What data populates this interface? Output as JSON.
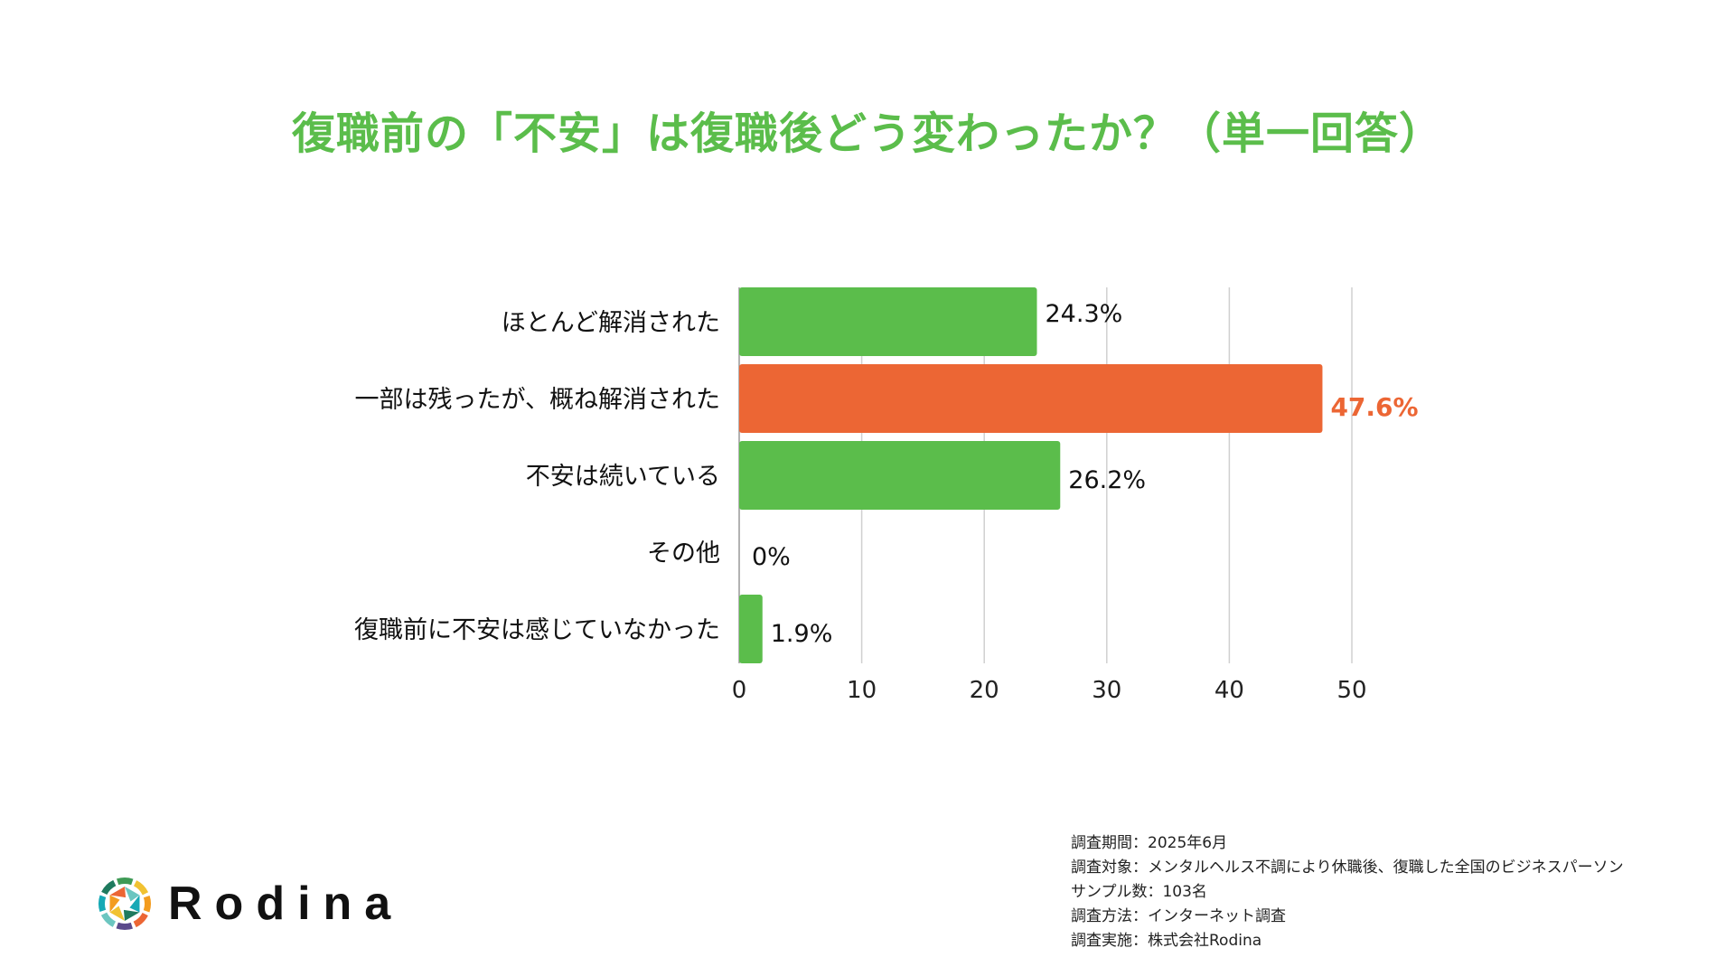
{
  "title": "復職前の「不安」は復職後どう変わったか？（単一回答）",
  "chart_data": {
    "type": "bar",
    "orientation": "horizontal",
    "title": "復職前の「不安」は復職後どう変わったか？（単一回答）",
    "categories": [
      "ほとんど解消された",
      "一部は残ったが、概ね解消された",
      "不安は続いている",
      "その他",
      "復職前に不安は感じていなかった"
    ],
    "values": [
      24.3,
      47.6,
      26.2,
      0,
      1.9
    ],
    "value_labels": [
      "24.3%",
      "47.6%",
      "26.2%",
      "0%",
      "1.9%"
    ],
    "xlim": [
      0,
      50
    ],
    "xticks": [
      0,
      10,
      20,
      30,
      40,
      50
    ],
    "grid": true,
    "highlight_index": 1,
    "colors": {
      "bar": "#5bbd4b",
      "highlight": "#ec6634",
      "grid": "#d0d0d0"
    }
  },
  "notes": [
    "調査期間：2025年6月",
    "調査対象：メンタルヘルス不調により休職後、復職した全国のビジネスパーソン",
    "サンプル数：103名",
    "調査方法：インターネット調査",
    "調査実施：株式会社Rodina"
  ],
  "logo": {
    "text": "Rodina"
  }
}
